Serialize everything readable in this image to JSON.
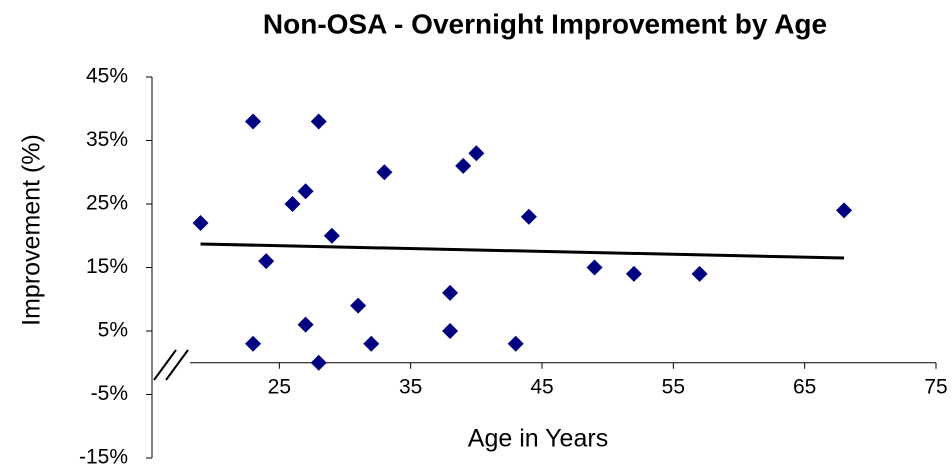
{
  "chart_data": {
    "type": "scatter",
    "title": "Non-OSA - Overnight Improvement by Age",
    "x_label": "Age in Years",
    "y_label": "Improvement  (%)",
    "series": [
      {
        "name": "Non-OSA",
        "color": "#000080",
        "x": [
          19,
          23,
          28,
          23,
          24,
          26,
          27,
          29,
          27,
          28,
          31,
          33,
          32,
          38,
          38,
          39,
          40,
          43,
          44,
          49,
          52,
          57,
          68
        ],
        "values": [
          22,
          38,
          38,
          3,
          16,
          25,
          27,
          20,
          6,
          0,
          9,
          30,
          3,
          11,
          5,
          31,
          33,
          3,
          23,
          15,
          14,
          14,
          24
        ]
      }
    ],
    "trendline": {
      "color": "#000000",
      "x": [
        19,
        68
      ],
      "values": [
        18.7,
        16.5
      ]
    },
    "xlim": [
      15,
      75
    ],
    "xticks": [
      25,
      35,
      45,
      55,
      65,
      75
    ],
    "ylim": [
      -15,
      45
    ],
    "yticks": [
      {
        "value": 45,
        "label": "45%"
      },
      {
        "value": 35,
        "label": "35%"
      },
      {
        "value": 25,
        "label": "25%"
      },
      {
        "value": 15,
        "label": "15%"
      },
      {
        "value": 5,
        "label": "5%"
      },
      {
        "value": -5,
        "label": "-5%"
      },
      {
        "value": -15,
        "label": "-15%"
      }
    ]
  }
}
